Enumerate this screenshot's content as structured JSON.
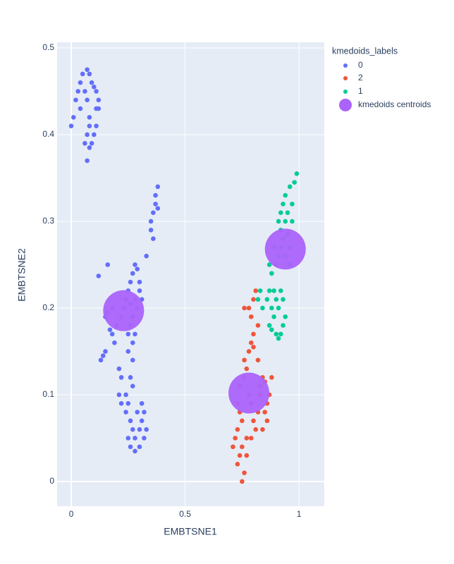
{
  "chart_data": {
    "type": "scatter",
    "xlabel": "EMBTSNE1",
    "ylabel": "EMBTSNE2",
    "legend_title": "kmedoids_labels",
    "xlim": [
      -0.062,
      1.111
    ],
    "ylim": [
      -0.0285,
      0.5065
    ],
    "xticks": [
      0,
      0.5,
      1
    ],
    "yticks": [
      0,
      0.1,
      0.2,
      0.3,
      0.4,
      0.5
    ],
    "grid": true,
    "legend": "right",
    "series": [
      {
        "name": "0",
        "color": "#636efa",
        "x": [
          0.0,
          0.01,
          0.02,
          0.03,
          0.04,
          0.05,
          0.07,
          0.08,
          0.09,
          0.1,
          0.11,
          0.12,
          0.11,
          0.07,
          0.06,
          0.08,
          0.07,
          0.06,
          0.08,
          0.09,
          0.07,
          0.08,
          0.11,
          0.1,
          0.12,
          0.04,
          0.38,
          0.37,
          0.37,
          0.36,
          0.35,
          0.36,
          0.38,
          0.35,
          0.16,
          0.12,
          0.33,
          0.15,
          0.16,
          0.18,
          0.2,
          0.22,
          0.24,
          0.25,
          0.26,
          0.27,
          0.28,
          0.29,
          0.3,
          0.31,
          0.29,
          0.27,
          0.26,
          0.25,
          0.28,
          0.27,
          0.18,
          0.19,
          0.17,
          0.14,
          0.15,
          0.13,
          0.23,
          0.28,
          0.3,
          0.26,
          0.21,
          0.22,
          0.21,
          0.22,
          0.25,
          0.27,
          0.26,
          0.27,
          0.24,
          0.25,
          0.24,
          0.26,
          0.27,
          0.25,
          0.26,
          0.28,
          0.3,
          0.32,
          0.33,
          0.31,
          0.29,
          0.28,
          0.3,
          0.32,
          0.31
        ],
        "y": [
          0.41,
          0.42,
          0.44,
          0.45,
          0.46,
          0.47,
          0.475,
          0.47,
          0.46,
          0.455,
          0.45,
          0.44,
          0.43,
          0.44,
          0.45,
          0.42,
          0.4,
          0.39,
          0.385,
          0.39,
          0.37,
          0.41,
          0.41,
          0.4,
          0.43,
          0.43,
          0.34,
          0.33,
          0.32,
          0.31,
          0.29,
          0.28,
          0.315,
          0.3,
          0.25,
          0.237,
          0.26,
          0.19,
          0.195,
          0.2,
          0.18,
          0.19,
          0.21,
          0.22,
          0.23,
          0.24,
          0.25,
          0.245,
          0.22,
          0.21,
          0.2,
          0.19,
          0.18,
          0.17,
          0.17,
          0.16,
          0.17,
          0.16,
          0.175,
          0.145,
          0.15,
          0.14,
          0.2,
          0.21,
          0.23,
          0.205,
          0.13,
          0.12,
          0.1,
          0.09,
          0.15,
          0.14,
          0.12,
          0.11,
          0.1,
          0.09,
          0.08,
          0.07,
          0.06,
          0.05,
          0.04,
          0.035,
          0.04,
          0.05,
          0.06,
          0.07,
          0.08,
          0.05,
          0.06,
          0.08,
          0.09
        ]
      },
      {
        "name": "2",
        "color": "#EF553B",
        "x": [
          0.73,
          0.74,
          0.75,
          0.76,
          0.77,
          0.72,
          0.71,
          0.73,
          0.74,
          0.75,
          0.73,
          0.74,
          0.76,
          0.77,
          0.76,
          0.78,
          0.79,
          0.78,
          0.79,
          0.8,
          0.79,
          0.81,
          0.82,
          0.83,
          0.84,
          0.82,
          0.85,
          0.86,
          0.87,
          0.88,
          0.86,
          0.84,
          0.8,
          0.79,
          0.8,
          0.81,
          0.78,
          0.76,
          0.82,
          0.8,
          0.83,
          0.85,
          0.77,
          0.75
        ],
        "y": [
          0.02,
          0.03,
          0.0,
          0.01,
          0.03,
          0.05,
          0.04,
          0.06,
          0.08,
          0.07,
          0.09,
          0.11,
          0.12,
          0.13,
          0.14,
          0.15,
          0.16,
          0.1,
          0.09,
          0.07,
          0.05,
          0.06,
          0.08,
          0.1,
          0.12,
          0.14,
          0.08,
          0.09,
          0.1,
          0.12,
          0.07,
          0.06,
          0.17,
          0.19,
          0.21,
          0.22,
          0.2,
          0.2,
          0.18,
          0.155,
          0.11,
          0.115,
          0.05,
          0.04
        ]
      },
      {
        "name": "1",
        "color": "#00cc96",
        "x": [
          0.82,
          0.83,
          0.84,
          0.86,
          0.87,
          0.88,
          0.89,
          0.9,
          0.91,
          0.92,
          0.93,
          0.94,
          0.93,
          0.92,
          0.91,
          0.89,
          0.87,
          0.88,
          0.9,
          0.87,
          0.88,
          0.9,
          0.91,
          0.92,
          0.93,
          0.92,
          0.94,
          0.95,
          0.93,
          0.94,
          0.96,
          0.97,
          0.98,
          0.99,
          0.95,
          0.97,
          0.96,
          0.94,
          0.96,
          0.89,
          0.91,
          0.92
        ],
        "y": [
          0.21,
          0.22,
          0.2,
          0.21,
          0.22,
          0.2,
          0.19,
          0.17,
          0.165,
          0.17,
          0.18,
          0.19,
          0.21,
          0.22,
          0.2,
          0.22,
          0.18,
          0.175,
          0.21,
          0.25,
          0.24,
          0.25,
          0.26,
          0.27,
          0.28,
          0.29,
          0.3,
          0.31,
          0.32,
          0.33,
          0.34,
          0.32,
          0.345,
          0.355,
          0.285,
          0.3,
          0.27,
          0.26,
          0.25,
          0.27,
          0.3,
          0.31
        ]
      },
      {
        "name": "kmedoids centroids",
        "color": "#ab63fa",
        "x": [
          0.23,
          0.78,
          0.94
        ],
        "y": [
          0.197,
          0.102,
          0.268
        ]
      }
    ]
  }
}
